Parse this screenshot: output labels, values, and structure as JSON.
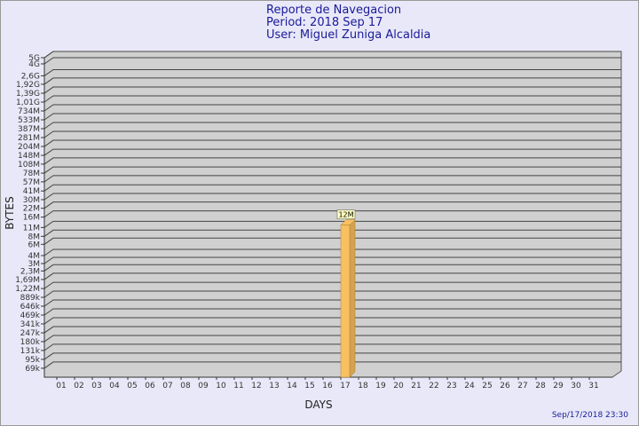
{
  "chart_data": {
    "type": "bar",
    "title": [
      "Reporte de Navegacion",
      "Period: 2018 Sep 17",
      "User: Miguel Zuniga  Alcaldia"
    ],
    "x_label": "DAYS",
    "y_label": "BYTES",
    "footer": "Sep/17/2018 23:30",
    "categories": [
      "01",
      "02",
      "03",
      "04",
      "05",
      "06",
      "07",
      "08",
      "09",
      "10",
      "11",
      "12",
      "13",
      "14",
      "15",
      "16",
      "17",
      "18",
      "19",
      "20",
      "21",
      "22",
      "23",
      "24",
      "25",
      "26",
      "27",
      "28",
      "29",
      "30",
      "31"
    ],
    "values": [
      null,
      null,
      null,
      null,
      null,
      null,
      null,
      null,
      null,
      null,
      null,
      null,
      null,
      null,
      null,
      null,
      12000000,
      null,
      null,
      null,
      null,
      null,
      null,
      null,
      null,
      null,
      null,
      null,
      null,
      null,
      null
    ],
    "value_labels": [
      null,
      null,
      null,
      null,
      null,
      null,
      null,
      null,
      null,
      null,
      null,
      null,
      null,
      null,
      null,
      null,
      "12M",
      null,
      null,
      null,
      null,
      null,
      null,
      null,
      null,
      null,
      null,
      null,
      null,
      null,
      null
    ],
    "color": "#f8c060",
    "log_scale": true,
    "grid": true,
    "ylim": [
      50000,
      5000000000
    ],
    "yticks": [
      {
        "value": 69000,
        "label": "69k"
      },
      {
        "value": 95000,
        "label": "95k"
      },
      {
        "value": 131000,
        "label": "131k"
      },
      {
        "value": 180000,
        "label": "180k"
      },
      {
        "value": 247000,
        "label": "247k"
      },
      {
        "value": 341000,
        "label": "341k"
      },
      {
        "value": 469000,
        "label": "469k"
      },
      {
        "value": 646000,
        "label": "646k"
      },
      {
        "value": 889000,
        "label": "889k"
      },
      {
        "value": 1220000,
        "label": "1,22M"
      },
      {
        "value": 1690000,
        "label": "1,69M"
      },
      {
        "value": 2300000,
        "label": "2,3M"
      },
      {
        "value": 3000000,
        "label": "3M"
      },
      {
        "value": 4000000,
        "label": "4M"
      },
      {
        "value": 6000000,
        "label": "6M"
      },
      {
        "value": 8000000,
        "label": "8M"
      },
      {
        "value": 11000000,
        "label": "11M"
      },
      {
        "value": 16000000,
        "label": "16M"
      },
      {
        "value": 22000000,
        "label": "22M"
      },
      {
        "value": 30000000,
        "label": "30M"
      },
      {
        "value": 41000000,
        "label": "41M"
      },
      {
        "value": 57000000,
        "label": "57M"
      },
      {
        "value": 78000000,
        "label": "78M"
      },
      {
        "value": 108000000,
        "label": "108M"
      },
      {
        "value": 148000000,
        "label": "148M"
      },
      {
        "value": 204000000,
        "label": "204M"
      },
      {
        "value": 281000000,
        "label": "281M"
      },
      {
        "value": 387000000,
        "label": "387M"
      },
      {
        "value": 533000000,
        "label": "533M"
      },
      {
        "value": 734000000,
        "label": "734M"
      },
      {
        "value": 1010000000,
        "label": "1,01G"
      },
      {
        "value": 1390000000,
        "label": "1,39G"
      },
      {
        "value": 1920000000,
        "label": "1,92G"
      },
      {
        "value": 2600000000,
        "label": "2,6G"
      },
      {
        "value": 4000000000,
        "label": "4G"
      },
      {
        "value": 5000000000,
        "label": "5G"
      }
    ]
  }
}
